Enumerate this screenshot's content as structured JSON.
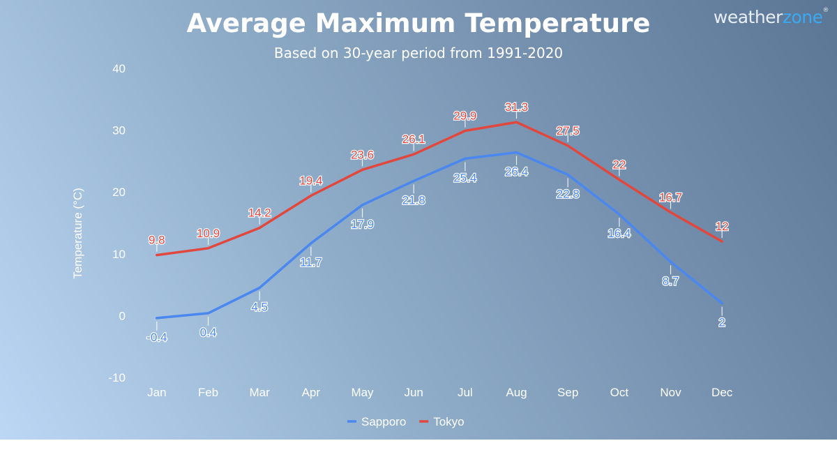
{
  "brand": {
    "part1": "weather",
    "part2": "zone",
    "mark": "®"
  },
  "chart_data": {
    "type": "line",
    "title": "Average Maximum Temperature",
    "subtitle": "Based on 30-year period from 1991-2020",
    "ylabel": "Temperature (°C)",
    "xlabel": "",
    "ylim": [
      -10,
      40
    ],
    "yticks": [
      -10,
      0,
      10,
      20,
      30,
      40
    ],
    "categories": [
      "Jan",
      "Feb",
      "Mar",
      "Apr",
      "May",
      "Jun",
      "Jul",
      "Aug",
      "Sep",
      "Oct",
      "Nov",
      "Dec"
    ],
    "grid": false,
    "legend": "bottom-center",
    "series": [
      {
        "name": "Sapporo",
        "color": "#4a87ee",
        "label_position": "below",
        "values": [
          -0.4,
          0.4,
          4.5,
          11.7,
          17.9,
          21.8,
          25.4,
          26.4,
          22.8,
          16.4,
          8.7,
          2
        ]
      },
      {
        "name": "Tokyo",
        "color": "#e2473d",
        "label_position": "above",
        "values": [
          9.8,
          10.9,
          14.2,
          19.4,
          23.6,
          26.1,
          29.9,
          31.3,
          27.5,
          22,
          16.7,
          12
        ]
      }
    ]
  }
}
